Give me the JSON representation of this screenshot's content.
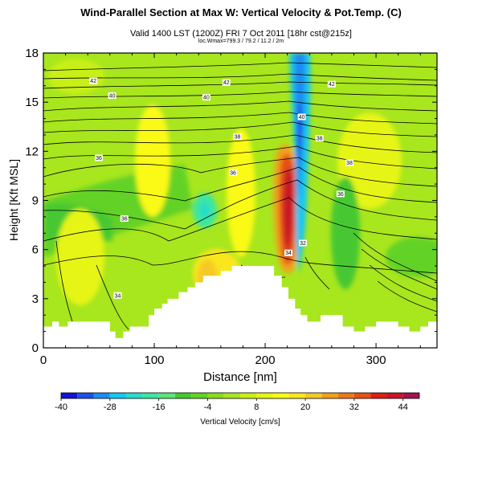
{
  "header": {
    "title": "Wind-Parallel Section at Max W: Vertical Velocity & Pot.Temp. (C)",
    "subtitle": "Valid 1400 LST (1200Z) FRI 7 Oct 2011 [18hr cst@215z]",
    "byline": "loc.Wmax=799.3 / 79.2 / 11.2 / 2m"
  },
  "chart_data": {
    "type": "heatmap",
    "title": "Wind-Parallel Section at Max W: Vertical Velocity & Pot.Temp. (C)",
    "xlabel": "Distance [nm]",
    "ylabel": "Height [Kft MSL]",
    "xlim": [
      0,
      355
    ],
    "ylim": [
      0,
      18
    ],
    "x_ticks": [
      0,
      100,
      200,
      300
    ],
    "y_ticks": [
      0,
      3,
      6,
      9,
      12,
      15,
      18
    ],
    "grid": false,
    "colorbar": {
      "label": "Vertical Velocity [cm/s]",
      "tick_labels": [
        "-40",
        "-28",
        "-16",
        "-4",
        "8",
        "20",
        "32",
        "44"
      ],
      "levels": [
        -40,
        -36,
        -32,
        -28,
        -24,
        -20,
        -16,
        -12,
        -8,
        -4,
        0,
        4,
        8,
        12,
        16,
        20,
        24,
        28,
        32,
        36,
        40,
        44,
        48
      ],
      "colors": [
        "#1414d2",
        "#1e50e6",
        "#1e8cf0",
        "#14c8f0",
        "#28dcc8",
        "#3ce6a0",
        "#5ae678",
        "#46c832",
        "#64d228",
        "#8cdc1e",
        "#a8e61e",
        "#c8f014",
        "#e6f514",
        "#fafa14",
        "#fae61e",
        "#f5c828",
        "#f0a01e",
        "#eb781e",
        "#e65014",
        "#dc1e14",
        "#c81428",
        "#a01450"
      ]
    },
    "terrain": {
      "x": [
        0,
        8,
        14,
        22,
        50,
        60,
        65,
        72,
        78,
        85,
        95,
        100,
        107,
        112,
        122,
        130,
        137,
        144,
        150,
        160,
        170,
        180,
        190,
        203,
        208,
        215,
        221,
        227,
        232,
        238,
        246,
        250,
        256,
        262,
        270,
        280,
        290,
        300,
        310,
        320,
        330,
        340,
        347,
        355
      ],
      "height_kft": [
        1.3,
        1.6,
        1.3,
        1.6,
        1.6,
        1.0,
        0.6,
        1.0,
        1.3,
        1.3,
        2.0,
        2.4,
        2.7,
        3.0,
        3.4,
        3.7,
        4.0,
        4.4,
        4.4,
        4.7,
        5.0,
        5.0,
        5.0,
        5.0,
        4.4,
        3.7,
        3.0,
        2.4,
        2.0,
        1.6,
        1.6,
        2.0,
        2.0,
        2.0,
        1.3,
        1.0,
        1.3,
        1.6,
        1.6,
        1.3,
        1.0,
        1.3,
        1.6,
        2.0
      ],
      "color": "#ffffff"
    },
    "contour_labels": [
      {
        "value": "42",
        "x": 45,
        "y": 16.3
      },
      {
        "value": "42",
        "x": 165,
        "y": 16.2
      },
      {
        "value": "42",
        "x": 260,
        "y": 16.1
      },
      {
        "value": "40",
        "x": 62,
        "y": 15.4
      },
      {
        "value": "40",
        "x": 147,
        "y": 15.3
      },
      {
        "value": "40",
        "x": 233,
        "y": 14.1
      },
      {
        "value": "38",
        "x": 175,
        "y": 12.9
      },
      {
        "value": "38",
        "x": 249,
        "y": 12.8
      },
      {
        "value": "38",
        "x": 276,
        "y": 11.3
      },
      {
        "value": "36",
        "x": 50,
        "y": 11.6
      },
      {
        "value": "36",
        "x": 171,
        "y": 10.7
      },
      {
        "value": "36",
        "x": 268,
        "y": 9.4
      },
      {
        "value": "36",
        "x": 73,
        "y": 7.9
      },
      {
        "value": "34",
        "x": 221,
        "y": 5.8
      },
      {
        "value": "32",
        "x": 234,
        "y": 6.4
      },
      {
        "value": "34",
        "x": 67,
        "y": 3.2
      }
    ]
  }
}
